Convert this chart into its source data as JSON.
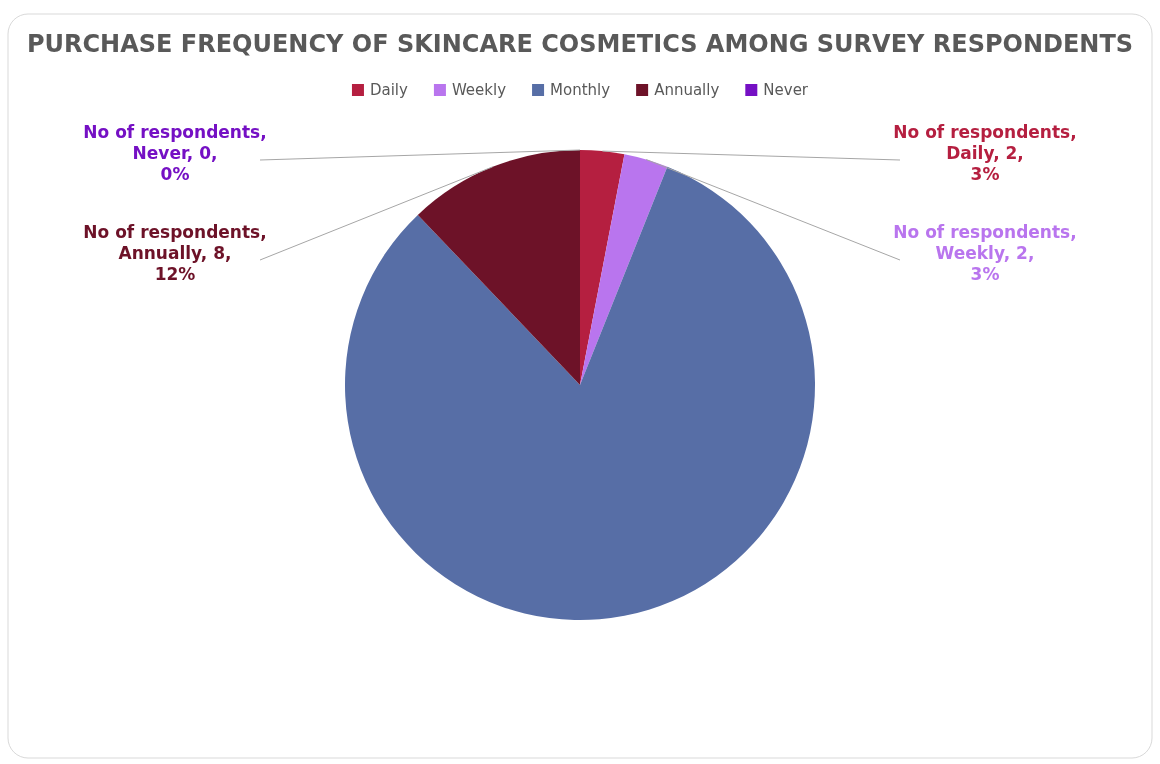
{
  "chart_data": {
    "type": "pie",
    "title": "PURCHASE FREQUENCY OF SKINCARE COSMETICS AMONG SURVEY RESPONDENTS",
    "categories": [
      "Daily",
      "Weekly",
      "Monthly",
      "Annually",
      "Never"
    ],
    "values": [
      2,
      2,
      54,
      8,
      0
    ],
    "colors": [
      "#b51f40",
      "#b975ee",
      "#576ea6",
      "#6d1228",
      "#7510c4"
    ],
    "value_labels": [
      "No of respondents, Daily, 2, 3%",
      "No of respondents, Weekly, 2, 3%",
      null,
      "No of respondents, Annually, 8, 12%",
      "No of respondents, Never, 0, 0%"
    ],
    "legend": "top"
  }
}
